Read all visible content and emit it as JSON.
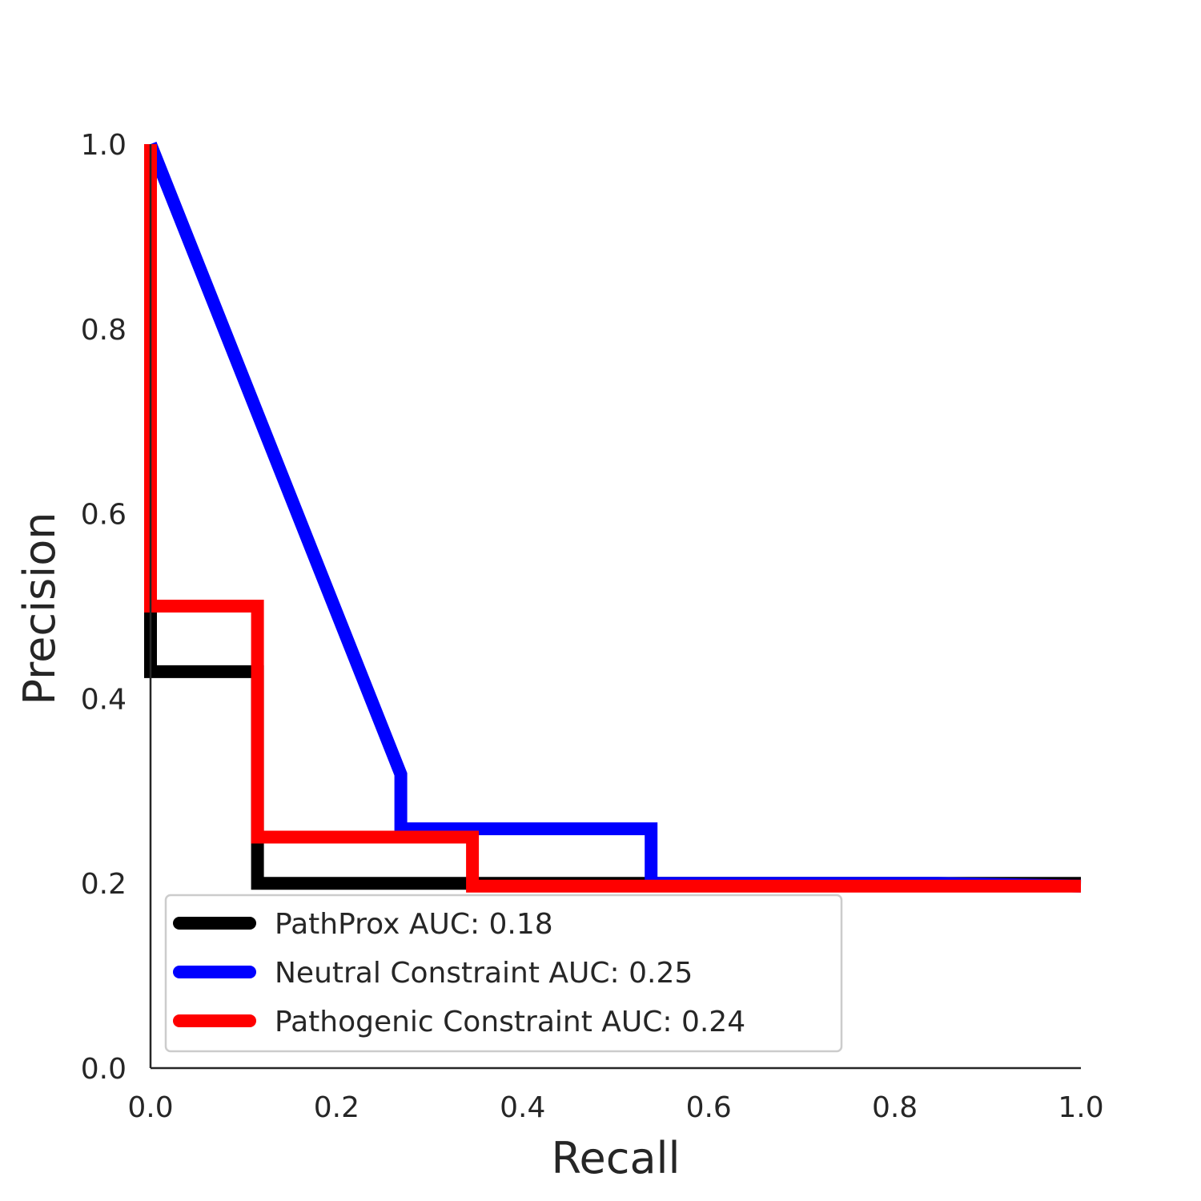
{
  "chart_data": {
    "type": "line",
    "xlabel": "Recall",
    "ylabel": "Precision",
    "xlim": [
      0,
      1
    ],
    "ylim": [
      0,
      1
    ],
    "x_ticks": [
      "0.0",
      "0.2",
      "0.4",
      "0.6",
      "0.8",
      "1.0"
    ],
    "y_ticks": [
      "0.0",
      "0.2",
      "0.4",
      "0.6",
      "0.8",
      "1.0"
    ],
    "grid": false,
    "legend_position": "lower-left",
    "series": [
      {
        "name": "PathProx AUC:  0.18",
        "color": "#000000",
        "step": "post",
        "x": [
          0.0,
          0.0,
          0.0,
          0.115,
          0.115,
          0.346,
          0.346,
          1.0
        ],
        "y": [
          1.0,
          0.5,
          0.429,
          0.429,
          0.2,
          0.2,
          0.2,
          0.2
        ]
      },
      {
        "name": "Neutral Constraint AUC:  0.25",
        "color": "#0000ff",
        "step": "none",
        "x": [
          0.0,
          0.269,
          0.269,
          0.538,
          0.538,
          0.846,
          1.0
        ],
        "y": [
          1.0,
          0.318,
          0.259,
          0.259,
          0.2,
          0.2,
          0.197
        ]
      },
      {
        "name": "Pathogenic Constraint AUC:  0.24",
        "color": "#ff0000",
        "step": "post",
        "x": [
          0.0,
          0.0,
          0.115,
          0.115,
          0.346,
          0.346,
          1.0
        ],
        "y": [
          1.0,
          0.5,
          0.5,
          0.25,
          0.25,
          0.197,
          0.197
        ]
      }
    ]
  }
}
